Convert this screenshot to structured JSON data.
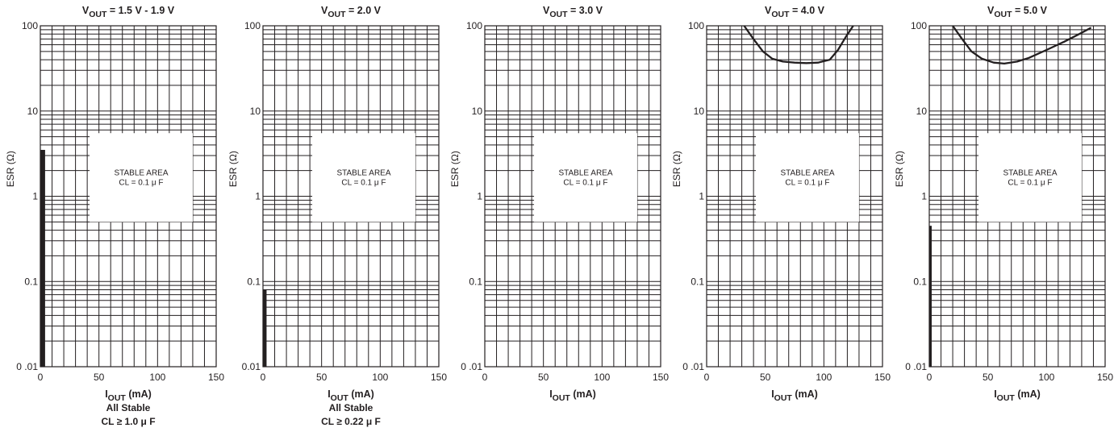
{
  "chart_data": [
    {
      "type": "line",
      "title_main": "V",
      "title_sub": "OUT",
      "title_rest": " = 1.5 V - 1.9 V",
      "ylabel": "ESR (Ω)",
      "xlabel_main": "I",
      "xlabel_sub": "OUT",
      "xlabel_rest": " (mA)",
      "xlim": [
        0,
        150
      ],
      "ylim": [
        0.01,
        100
      ],
      "yscale": "log",
      "x_ticks": [
        "0",
        "50",
        "100",
        "150"
      ],
      "y_ticks": [
        "0 .01",
        "0.1",
        "1",
        "10",
        "100"
      ],
      "annotation": [
        "STABLE AREA",
        "CL = 0.1 μ F"
      ],
      "notes": [
        "All Stable",
        "CL ≥ 1.0 μ F"
      ],
      "boundary": {
        "x": 2,
        "y_from": 0.01,
        "y_to": 3.5
      },
      "series": []
    },
    {
      "type": "line",
      "title_main": "V",
      "title_sub": "OUT",
      "title_rest": " = 2.0 V",
      "ylabel": "ESR (Ω)",
      "xlabel_main": "I",
      "xlabel_sub": "OUT",
      "xlabel_rest": " (mA)",
      "xlim": [
        0,
        150
      ],
      "ylim": [
        0.01,
        100
      ],
      "yscale": "log",
      "x_ticks": [
        "0",
        "50",
        "100",
        "150"
      ],
      "y_ticks": [
        "0.01",
        "0.1",
        "1",
        "10",
        "100"
      ],
      "annotation": [
        "STABLE AREA",
        "CL = 0.1 μ F"
      ],
      "notes": [
        "All Stable",
        "CL ≥ 0.22 μ F"
      ],
      "boundary": {
        "x": 1,
        "y_from": 0.01,
        "y_to": 0.08
      },
      "series": []
    },
    {
      "type": "line",
      "title_main": "V",
      "title_sub": "OUT",
      "title_rest": " = 3.0 V",
      "ylabel": "ESR (Ω)",
      "xlabel_main": "I",
      "xlabel_sub": "OUT",
      "xlabel_rest": " (mA)",
      "xlim": [
        0,
        150
      ],
      "ylim": [
        0.01,
        100
      ],
      "yscale": "log",
      "x_ticks": [
        "0",
        "50",
        "100",
        "150"
      ],
      "y_ticks": [
        "0 .01",
        "0.1",
        "1",
        "10",
        "100"
      ],
      "annotation": [
        "STABLE AREA",
        "CL = 0.1 μ F"
      ],
      "notes": [],
      "series": []
    },
    {
      "type": "line",
      "title_main": "V",
      "title_sub": "OUT",
      "title_rest": " = 4.0 V",
      "ylabel": "ESR (Ω)",
      "xlabel_main": "I",
      "xlabel_sub": "OUT",
      "xlabel_rest": " (mA)",
      "xlim": [
        0,
        150
      ],
      "ylim": [
        0.01,
        100
      ],
      "yscale": "log",
      "x_ticks": [
        "0",
        "50",
        "100",
        "150"
      ],
      "y_ticks": [
        "0 .01",
        "0.1",
        "1",
        "10",
        "100"
      ],
      "annotation": [
        "STABLE AREA",
        "CL = 0.1 μ F"
      ],
      "notes": [],
      "series": [
        {
          "x": [
            32,
            40,
            48,
            56,
            65,
            75,
            85,
            95,
            105,
            112,
            119,
            125
          ],
          "y": [
            100,
            70,
            50,
            41,
            38,
            37,
            36.5,
            37,
            40,
            52,
            75,
            100
          ]
        }
      ]
    },
    {
      "type": "line",
      "title_main": "V",
      "title_sub": "OUT",
      "title_rest": " = 5.0 V",
      "ylabel": "ESR (Ω)",
      "xlabel_main": "I",
      "xlabel_sub": "OUT",
      "xlabel_rest": " (mA)",
      "xlim": [
        0,
        150
      ],
      "ylim": [
        0.01,
        100
      ],
      "yscale": "log",
      "x_ticks": [
        "0",
        "50",
        "100",
        "150"
      ],
      "y_ticks": [
        "0 .01",
        "0.1",
        "1",
        "10",
        "100"
      ],
      "annotation": [
        "STABLE AREA",
        "CL = 0.1 μ F"
      ],
      "notes": [],
      "boundary": {
        "x": 0,
        "y_from": 0.01,
        "y_to": 0.45
      },
      "series": [
        {
          "x": [
            20,
            28,
            36,
            45,
            55,
            64,
            75,
            85,
            100,
            115,
            128,
            138
          ],
          "y": [
            100,
            70,
            50,
            41,
            37,
            36,
            38,
            42,
            52,
            65,
            80,
            95
          ]
        }
      ]
    }
  ]
}
